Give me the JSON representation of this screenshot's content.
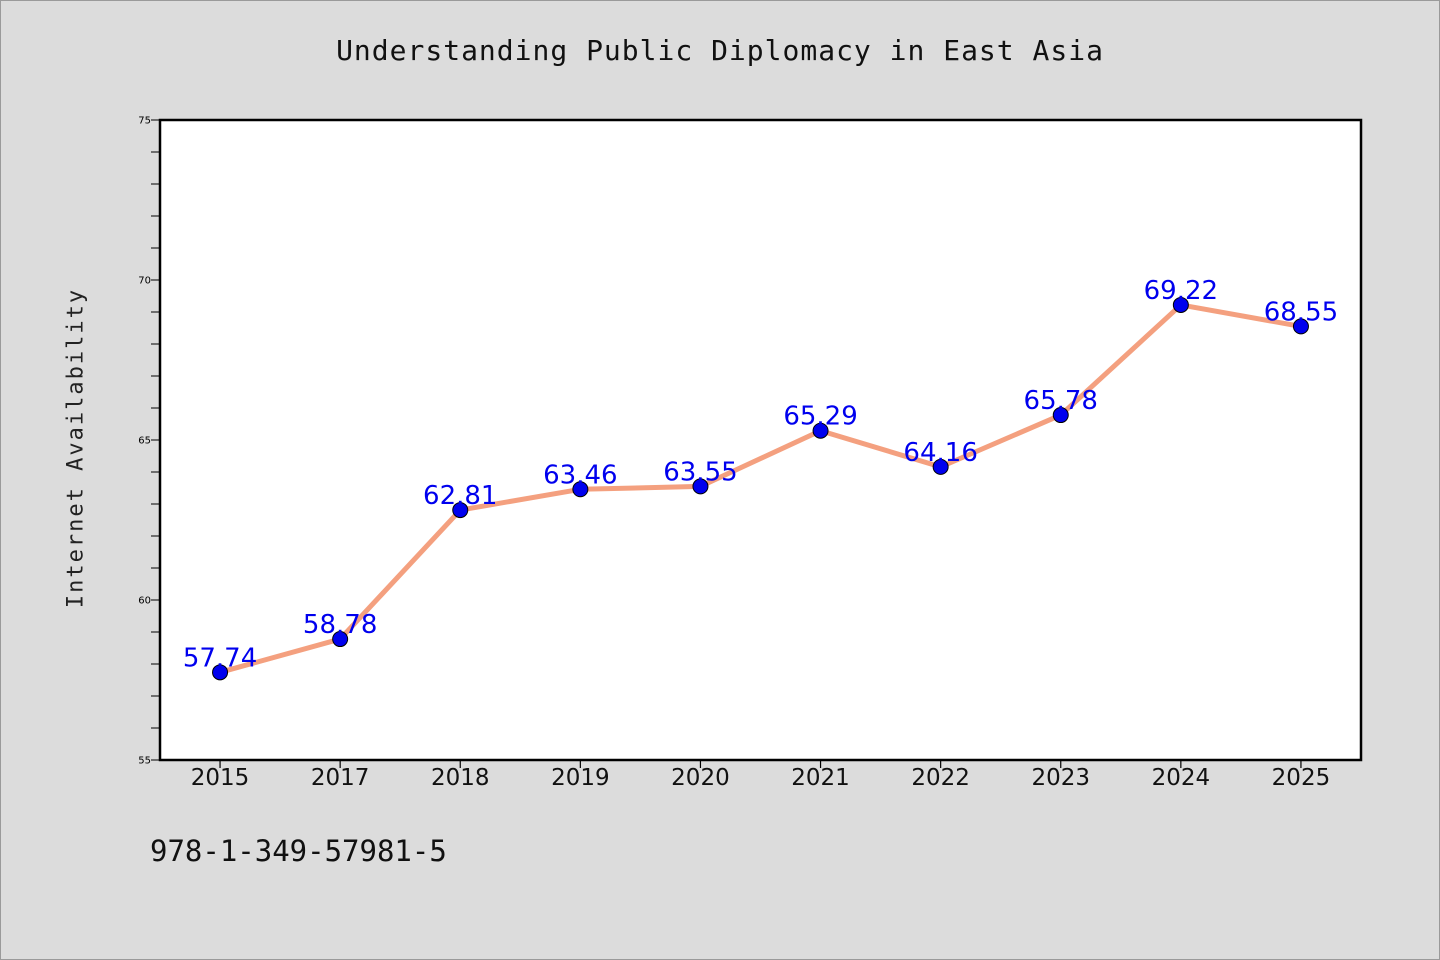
{
  "chart_data": {
    "type": "line",
    "title": "Understanding Public Diplomacy in East Asia",
    "xlabel": "",
    "ylabel": "Internet Availability",
    "categories": [
      "2015",
      "2017",
      "2018",
      "2019",
      "2020",
      "2021",
      "2022",
      "2023",
      "2024",
      "2025"
    ],
    "series": [
      {
        "values": [
          57.74,
          58.78,
          62.81,
          63.46,
          63.55,
          65.29,
          64.16,
          65.78,
          69.22,
          68.55
        ],
        "line_color": "#f4a07f",
        "marker_color": "#0000ee"
      }
    ],
    "data_labels": [
      "57.74",
      "58.78",
      "62.81",
      "63.46",
      "63.55",
      "65.29",
      "64.16",
      "65.78",
      "69.22",
      "68.55"
    ],
    "data_label_color": "#0000ee",
    "ylim": [
      55,
      75
    ],
    "yticks": [
      "55",
      "60",
      "65",
      "70",
      "75"
    ],
    "grid": false,
    "legend": "none"
  },
  "footer": {
    "isbn": "978-1-349-57981-5"
  }
}
